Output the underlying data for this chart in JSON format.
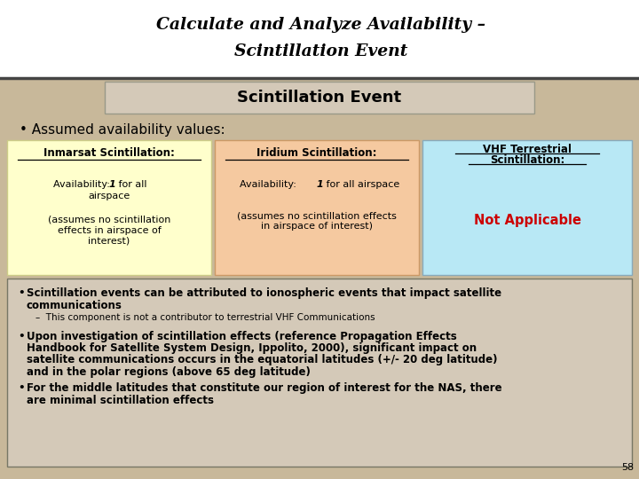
{
  "title_line1": "Calculate and Analyze Availability –",
  "title_line2": "Scintillation Event",
  "section_title": "Scintillation Event",
  "assumed_bullet": "• Assumed availability values:",
  "col1_bg": "#ffffcc",
  "col2_bg": "#f5c9a0",
  "col3_bg": "#b8e8f5",
  "col1_header": "Inmarsat Scintillation:",
  "col2_header": "Iridium Scintillation:",
  "col3_header_l1": "VHF Terrestrial",
  "col3_header_l2": "Scintillation:",
  "col1_avail_pre": "Availability: ",
  "col1_avail_num": "1",
  "col1_avail_post": " for all",
  "col1_avail_l2": "airspace",
  "col1_note": "(assumes no scintillation\neffects in airspace of\ninterest)",
  "col2_avail_pre": "Availability: ",
  "col2_avail_num": "1",
  "col2_avail_post": " for all airspace",
  "col2_note": "(assumes no scintillation effects\nin airspace of interest)",
  "col3_na": "Not Applicable",
  "bullet1a": "Scintillation events can be attributed to ionospheric events that impact satellite",
  "bullet1b": "communications",
  "sub1": "–  This component is not a contributor to terrestrial VHF Communications",
  "bullet2a": "Upon investigation of scintillation effects (reference Propagation Effects",
  "bullet2b": "Handbook for Satellite System Design, Ippolito, 2000), significant impact on",
  "bullet2c": "satellite communications occurs in the equatorial latitudes (+/- 20 deg latitude)",
  "bullet2d": "and in the polar regions (above 65 deg latitude)",
  "bullet3a": "For the middle latitudes that constitute our region of interest for the NAS, there",
  "bullet3b": "are minimal scintillation effects",
  "page_num": "58",
  "header_bg": "#ffffff",
  "slide_bg": "#c8b89a",
  "section_bg": "#d4c9b8",
  "bottom_bg": "#d4c9b8",
  "text_red": "#cc0000",
  "header_line_color": "#444444",
  "col1_edge": "#cccc88",
  "col2_edge": "#cc9966",
  "col3_edge": "#88aabb",
  "bottom_edge": "#777766"
}
